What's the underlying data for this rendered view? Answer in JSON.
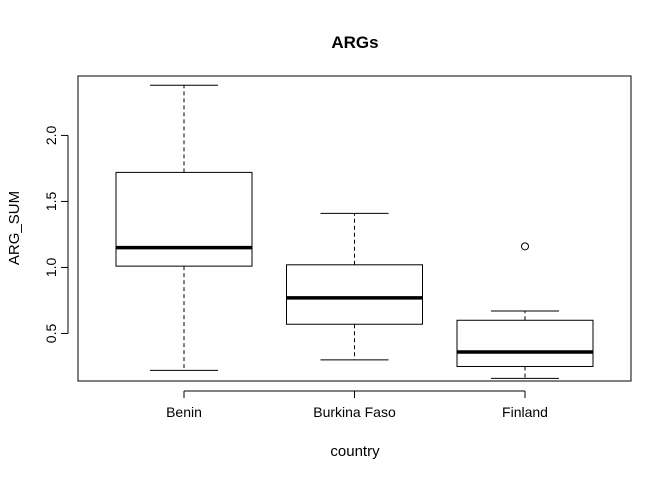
{
  "chart_data": {
    "type": "boxplot",
    "title": "ARGs",
    "xlabel": "country",
    "ylabel": "ARG_SUM",
    "categories": [
      "Benin",
      "Burkina Faso",
      "Finland"
    ],
    "y_ticks": [
      0.5,
      1.0,
      1.5,
      2.0
    ],
    "y_tick_labels": [
      "0.5",
      "1.0",
      "1.5",
      "2.0"
    ],
    "ylim": [
      0.14,
      2.45
    ],
    "boxes": [
      {
        "category": "Benin",
        "whisker_low": 0.22,
        "q1": 1.01,
        "median": 1.15,
        "q3": 1.72,
        "whisker_high": 2.38,
        "outliers": []
      },
      {
        "category": "Burkina Faso",
        "whisker_low": 0.3,
        "q1": 0.57,
        "median": 0.77,
        "q3": 1.02,
        "whisker_high": 1.41,
        "outliers": []
      },
      {
        "category": "Finland",
        "whisker_low": 0.16,
        "q1": 0.25,
        "median": 0.36,
        "q3": 0.6,
        "whisker_high": 0.67,
        "outliers": [
          1.16
        ]
      }
    ],
    "grid": false,
    "legend": "none"
  }
}
